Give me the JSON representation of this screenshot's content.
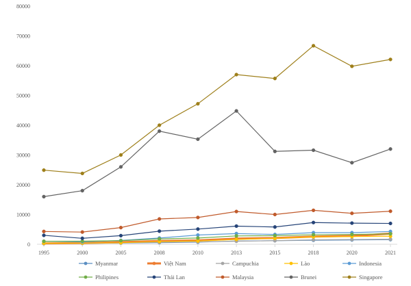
{
  "chart_data": {
    "type": "line",
    "title": "",
    "xlabel": "",
    "ylabel": "",
    "x": [
      "1995",
      "2000",
      "2005",
      "2008",
      "2010",
      "2013",
      "2015",
      "2018",
      "2020",
      "2021"
    ],
    "ylim": [
      0,
      80000
    ],
    "yticks": [
      "0",
      "10000",
      "20000",
      "30000",
      "40000",
      "50000",
      "60000",
      "70000",
      "80000"
    ],
    "grid": false,
    "legend_position": "bottom",
    "series": [
      {
        "name": "Myanmar",
        "color": "#5b8ec2",
        "values": [
          200,
          300,
          400,
          550,
          700,
          1100,
          1200,
          1350,
          1450,
          1550
        ]
      },
      {
        "name": "Việt Nam",
        "color": "#ed7d31",
        "values": [
          300,
          400,
          700,
          1100,
          1300,
          1900,
          2100,
          2600,
          2800,
          3600
        ]
      },
      {
        "name": "Campuchia",
        "color": "#a5a5a5",
        "values": [
          300,
          350,
          450,
          650,
          800,
          1000,
          1200,
          1500,
          1600,
          1700
        ]
      },
      {
        "name": "Lào",
        "color": "#ffc000",
        "values": [
          350,
          400,
          500,
          900,
          1100,
          1600,
          2000,
          2500,
          2600,
          2700
        ]
      },
      {
        "name": "Indonesia",
        "color": "#5b9bd5",
        "values": [
          1000,
          800,
          1300,
          2100,
          3100,
          3600,
          3300,
          3900,
          3900,
          4300
        ]
      },
      {
        "name": "Philipines",
        "color": "#70ad47",
        "values": [
          1000,
          1050,
          1200,
          1800,
          2100,
          2800,
          2900,
          3200,
          3300,
          3500
        ]
      },
      {
        "name": "Thái Lan",
        "color": "#264478",
        "values": [
          3000,
          2000,
          2900,
          4400,
          5100,
          6100,
          5800,
          7300,
          7100,
          7000
        ]
      },
      {
        "name": "Malaysia",
        "color": "#c05a2b",
        "values": [
          4300,
          4100,
          5600,
          8500,
          9000,
          11000,
          10000,
          11400,
          10400,
          11100
        ]
      },
      {
        "name": "Brunei",
        "color": "#636363",
        "values": [
          16000,
          18000,
          26000,
          38000,
          35300,
          44800,
          31200,
          31600,
          27400,
          32000
        ]
      },
      {
        "name": "Singapore",
        "color": "#9e7f1a",
        "values": [
          24900,
          23800,
          30000,
          40000,
          47200,
          57000,
          55700,
          66700,
          59800,
          62100
        ]
      }
    ]
  }
}
